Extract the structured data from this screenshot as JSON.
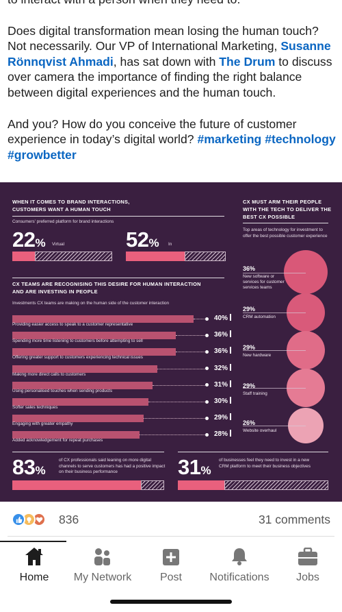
{
  "post": {
    "line0": "to interact with a person when they need to.",
    "p1_a": "Does digital transformation mean losing the human touch? Not necessarily. Our VP of International Marketing, ",
    "p1_link1": "Susanne Rönnqvist Ahmadi",
    "p1_b": ", has sat down with ",
    "p1_link2": "The Drum",
    "p1_c": " to discuss over camera the importance of finding the right balance between digital experiences and the human touch.",
    "p2_a": "And you? How do you conceive the future of customer experience in today’s digital world? ",
    "tag1": "#marketing",
    "tag2": "#technology",
    "tag3": "#growbetter"
  },
  "infographic": {
    "brand_title_1": "WHEN IT COMES TO BRAND INTERACTIONS,",
    "brand_title_2": "CUSTOMERS WANT A HUMAN TOUCH",
    "brand_sub": "Consumers' preferred platform for brand interactions",
    "virtual_value": "22",
    "virtual_label": "Virtual",
    "in_value": "52",
    "in_label": "In",
    "pct_sign": "%",
    "invest_title_1": "CX TEAMS ARE RECOGNISING THIS DESIRE FOR HUMAN INTERACTION",
    "invest_title_2": "AND ARE INVESTING IN PEOPLE",
    "invest_sub": "Investments CX teams are making on the human side of the customer interaction",
    "investments": [
      {
        "label": "Providing easier access to speak to a customer representative",
        "value": "40%",
        "v": 40
      },
      {
        "label": "Spending more time listening to customers before attempting to sell",
        "value": "36%",
        "v": 36
      },
      {
        "label": "Offering greater support to customers experiencing technical issues",
        "value": "36%",
        "v": 36
      },
      {
        "label": "Making more direct calls to customers",
        "value": "32%",
        "v": 32
      },
      {
        "label": "Using personalised touches when sending products",
        "value": "31%",
        "v": 31
      },
      {
        "label": "Softer sales techniques",
        "value": "30%",
        "v": 30
      },
      {
        "label": "Engaging with greater empathy",
        "value": "29%",
        "v": 29
      },
      {
        "label": "Added acknowledgement for repeat purchases",
        "value": "28%",
        "v": 28
      }
    ],
    "tech_title_1": "CX MUST ARM THEIR PEOPLE",
    "tech_title_2": "WITH THE TECH TO DELIVER THE",
    "tech_title_3": "BEST CX POSSIBLE",
    "tech_sub": "Top areas of technology for investment to offer the best possible customer experience",
    "tech": [
      {
        "value": "36%",
        "label": "New software or services for customer services teams"
      },
      {
        "value": "29%",
        "label": "CRM automation"
      },
      {
        "value": "29%",
        "label": "New hardware"
      },
      {
        "value": "29%",
        "label": "Staff training"
      },
      {
        "value": "26%",
        "label": "Website overhaul"
      }
    ],
    "stat1_value": "83",
    "stat1_text": "of CX professionals said leaning on more digital channels to serve customers has had a positive impact on their business performance",
    "stat2_value": "31",
    "stat2_text": "of businesses feel they need to invest in a new CRM platform to meet their business objectives",
    "colors": {
      "bg": "#3a1f40",
      "accent": "#e9607d"
    }
  },
  "reactions": {
    "count": "836",
    "comments": "31 comments",
    "icons": [
      "like-icon",
      "insightful-icon",
      "love-icon"
    ]
  },
  "nav": [
    {
      "label": "Home",
      "icon": "home-icon",
      "active": true
    },
    {
      "label": "My Network",
      "icon": "network-icon",
      "active": false
    },
    {
      "label": "Post",
      "icon": "post-icon",
      "active": false
    },
    {
      "label": "Notifications",
      "icon": "bell-icon",
      "active": false
    },
    {
      "label": "Jobs",
      "icon": "briefcase-icon",
      "active": false
    }
  ]
}
